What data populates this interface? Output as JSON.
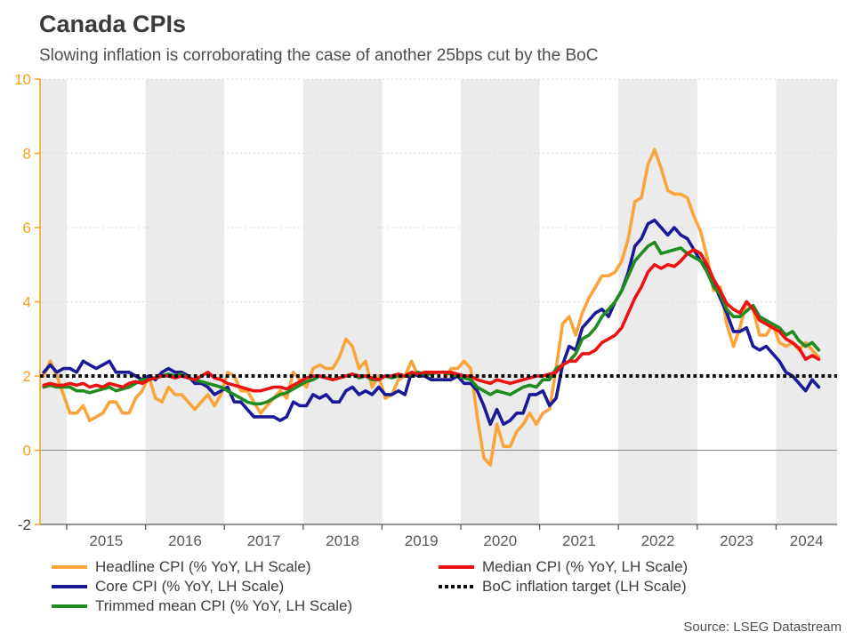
{
  "header": {
    "title": "Canada CPIs",
    "subtitle": "Slowing inflation is corroborating the case of another 25bps cut by the BoC"
  },
  "source": "Source: LSEG Datastream",
  "colors": {
    "axis_accent": "#f6a11c",
    "axis_text_negative": "#404040",
    "x_axis_text": "#595959",
    "band": "#ebebeb",
    "gridline": "#d9d9d9",
    "zero_line": "#8c8c8c",
    "bottom_axis": "#595959",
    "headline": "#faa53c",
    "core": "#1a1a99",
    "trimmed": "#1f8c1f",
    "median": "#ee1111",
    "target": "#0d0d0d"
  },
  "chart_data": {
    "type": "line",
    "title": "Canada CPIs",
    "xlabel": "",
    "ylabel": "",
    "ylim": [
      -2,
      10
    ],
    "y_ticks": [
      10,
      8,
      6,
      4,
      2,
      0,
      -2
    ],
    "x_tick_years": [
      2015,
      2016,
      2017,
      2018,
      2019,
      2020,
      2021,
      2022,
      2023,
      2024
    ],
    "frequency": "monthly",
    "start": {
      "year": 2014,
      "month": 9
    },
    "end": {
      "year": 2024,
      "month": 7
    },
    "grid": "horizontal-dashed, alternating vertical year bands",
    "legend_position": "bottom",
    "target_line": {
      "label": "BoC inflation target (LH Scale)",
      "value": 2,
      "style": "dotted",
      "color": "#0d0d0d"
    },
    "series": [
      {
        "name": "Headline CPI (% YoY, LH Scale)",
        "color": "#faa53c",
        "values": [
          2.0,
          2.4,
          2.0,
          1.5,
          1.0,
          1.0,
          1.2,
          0.8,
          0.9,
          1.0,
          1.3,
          1.3,
          1.0,
          1.0,
          1.4,
          1.6,
          2.0,
          1.4,
          1.3,
          1.7,
          1.5,
          1.5,
          1.3,
          1.1,
          1.3,
          1.5,
          1.2,
          1.5,
          2.1,
          2.0,
          1.6,
          1.6,
          1.3,
          1.0,
          1.2,
          1.4,
          1.6,
          1.4,
          2.1,
          1.9,
          1.7,
          2.2,
          2.3,
          2.2,
          2.2,
          2.5,
          3.0,
          2.8,
          2.2,
          2.4,
          1.7,
          2.0,
          1.4,
          1.5,
          1.9,
          2.0,
          2.4,
          2.0,
          2.0,
          1.9,
          1.9,
          1.9,
          2.2,
          2.2,
          2.4,
          2.2,
          0.9,
          -0.2,
          -0.4,
          0.7,
          0.1,
          0.1,
          0.5,
          0.7,
          1.0,
          0.7,
          1.0,
          1.1,
          2.2,
          3.4,
          3.6,
          3.1,
          3.7,
          4.1,
          4.4,
          4.7,
          4.7,
          4.8,
          5.1,
          5.7,
          6.7,
          6.8,
          7.7,
          8.1,
          7.6,
          7.0,
          6.9,
          6.9,
          6.8,
          6.3,
          5.9,
          5.2,
          4.3,
          4.4,
          3.4,
          2.8,
          3.3,
          4.0,
          3.8,
          3.1,
          3.1,
          3.4,
          2.9,
          2.8,
          2.9,
          2.7,
          2.9,
          2.7,
          2.5
        ]
      },
      {
        "name": "Core CPI (% YoY, LH Scale)",
        "color": "#1a1a99",
        "values": [
          2.1,
          2.3,
          2.1,
          2.2,
          2.2,
          2.1,
          2.4,
          2.3,
          2.2,
          2.3,
          2.4,
          2.1,
          2.1,
          2.1,
          2.0,
          1.9,
          2.0,
          1.9,
          2.1,
          2.2,
          2.1,
          2.1,
          2.0,
          1.8,
          1.8,
          1.7,
          1.5,
          1.6,
          1.7,
          1.3,
          1.3,
          1.1,
          0.9,
          0.9,
          0.9,
          0.9,
          0.8,
          0.9,
          1.3,
          1.2,
          1.2,
          1.5,
          1.4,
          1.5,
          1.3,
          1.3,
          1.6,
          1.7,
          1.5,
          1.6,
          1.5,
          1.7,
          1.5,
          1.5,
          1.6,
          1.5,
          2.1,
          2.0,
          2.0,
          1.9,
          1.9,
          1.9,
          1.9,
          2.0,
          1.8,
          1.8,
          1.6,
          1.2,
          0.7,
          1.1,
          0.7,
          0.8,
          1.0,
          1.0,
          1.5,
          1.5,
          1.6,
          1.2,
          1.4,
          2.3,
          2.8,
          2.7,
          3.3,
          3.5,
          3.7,
          3.8,
          3.6,
          4.0,
          4.3,
          4.8,
          5.5,
          5.7,
          6.1,
          6.2,
          6.0,
          5.8,
          6.0,
          5.8,
          5.7,
          5.4,
          5.1,
          4.9,
          4.5,
          4.1,
          3.7,
          3.2,
          3.2,
          3.3,
          2.8,
          2.7,
          2.8,
          2.6,
          2.4,
          2.1,
          2.0,
          1.8,
          1.6,
          1.9,
          1.7
        ]
      },
      {
        "name": "Trimmed mean CPI (% YoY, LH Scale)",
        "color": "#1f8c1f",
        "values": [
          1.7,
          1.75,
          1.7,
          1.7,
          1.7,
          1.6,
          1.6,
          1.55,
          1.6,
          1.65,
          1.7,
          1.6,
          1.65,
          1.7,
          1.8,
          1.9,
          1.9,
          1.95,
          2.0,
          2.05,
          2.0,
          2.05,
          1.95,
          1.9,
          1.85,
          1.8,
          1.75,
          1.7,
          1.6,
          1.5,
          1.4,
          1.3,
          1.25,
          1.25,
          1.3,
          1.4,
          1.5,
          1.55,
          1.65,
          1.75,
          1.85,
          1.9,
          2.0,
          1.95,
          1.9,
          1.95,
          2.0,
          2.05,
          1.95,
          2.0,
          1.9,
          1.9,
          2.0,
          1.95,
          2.0,
          2.0,
          2.05,
          2.1,
          2.05,
          2.05,
          2.1,
          2.1,
          2.05,
          2.0,
          1.95,
          1.9,
          1.7,
          1.6,
          1.5,
          1.6,
          1.55,
          1.5,
          1.6,
          1.7,
          1.75,
          1.7,
          1.9,
          1.9,
          2.2,
          2.3,
          2.4,
          2.6,
          3.0,
          3.1,
          3.3,
          3.6,
          3.8,
          4.0,
          4.3,
          4.7,
          5.1,
          5.3,
          5.5,
          5.6,
          5.3,
          5.35,
          5.4,
          5.45,
          5.3,
          5.2,
          5.1,
          4.8,
          4.4,
          4.2,
          3.8,
          3.6,
          3.6,
          3.75,
          3.9,
          3.6,
          3.5,
          3.4,
          3.3,
          3.1,
          3.2,
          2.95,
          2.8,
          2.9,
          2.7
        ]
      },
      {
        "name": "Median CPI (% YoY, LH Scale)",
        "color": "#ee1111",
        "values": [
          1.75,
          1.8,
          1.75,
          1.75,
          1.8,
          1.75,
          1.8,
          1.7,
          1.75,
          1.7,
          1.8,
          1.75,
          1.7,
          1.8,
          1.85,
          1.8,
          1.9,
          1.95,
          2.0,
          2.0,
          1.95,
          2.0,
          1.95,
          1.9,
          2.0,
          2.1,
          1.95,
          1.9,
          1.8,
          1.75,
          1.7,
          1.65,
          1.6,
          1.6,
          1.65,
          1.7,
          1.7,
          1.65,
          1.75,
          1.85,
          1.95,
          2.0,
          2.0,
          1.95,
          1.9,
          1.95,
          2.0,
          2.05,
          2.0,
          2.0,
          1.95,
          1.9,
          2.0,
          2.0,
          2.05,
          2.0,
          2.1,
          2.05,
          2.1,
          2.1,
          2.1,
          2.1,
          2.1,
          2.05,
          2.0,
          2.0,
          1.9,
          1.85,
          1.8,
          1.9,
          1.85,
          1.8,
          1.85,
          1.9,
          1.95,
          2.0,
          2.0,
          2.05,
          2.1,
          2.3,
          2.4,
          2.4,
          2.6,
          2.6,
          2.7,
          2.9,
          3.0,
          3.1,
          3.3,
          3.7,
          4.1,
          4.4,
          4.8,
          5.0,
          4.9,
          5.0,
          4.95,
          5.1,
          5.3,
          5.4,
          5.3,
          5.0,
          4.6,
          4.3,
          3.95,
          3.8,
          3.7,
          4.0,
          3.8,
          3.5,
          3.4,
          3.3,
          3.2,
          3.0,
          2.9,
          2.75,
          2.45,
          2.55,
          2.45
        ]
      }
    ]
  },
  "legend": {
    "headline": "Headline CPI (% YoY, LH Scale)",
    "core": "Core CPI (% YoY, LH Scale)",
    "trimmed": "Trimmed mean CPI (% YoY, LH Scale)",
    "median": "Median CPI (% YoY, LH Scale)",
    "target": "BoC inflation target (LH Scale)"
  }
}
